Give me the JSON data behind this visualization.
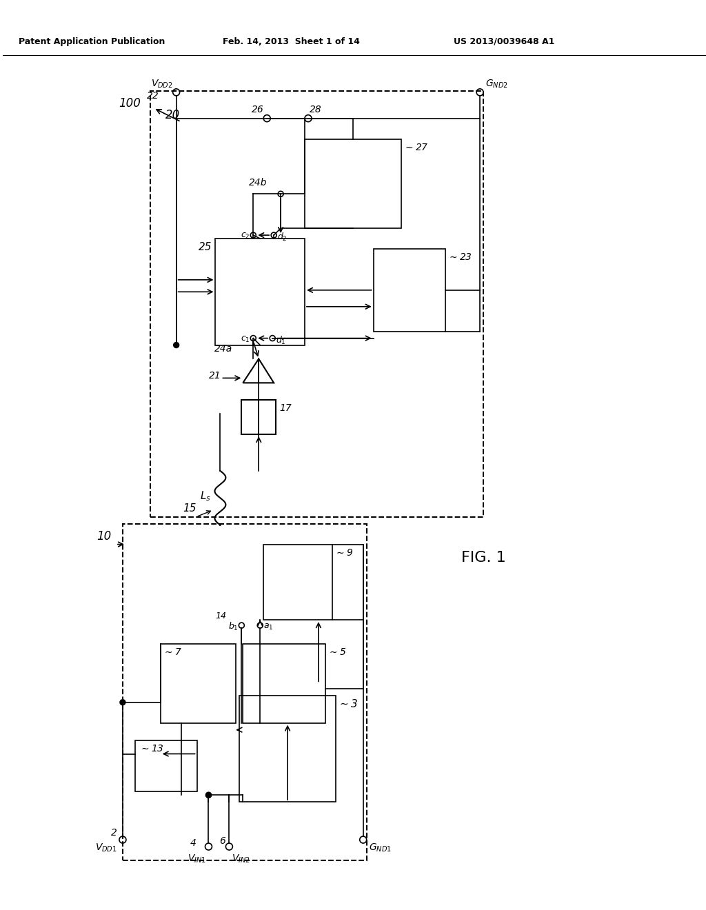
{
  "bg_color": "#ffffff",
  "line_color": "#000000",
  "title_line1": "Patent Application Publication",
  "title_line2": "Feb. 14, 2013  Sheet 1 of 14",
  "title_line3": "US 2013/0039648 A1",
  "fig_label": "FIG. 1",
  "dpi": 100,
  "figsize": [
    10.24,
    13.2
  ]
}
